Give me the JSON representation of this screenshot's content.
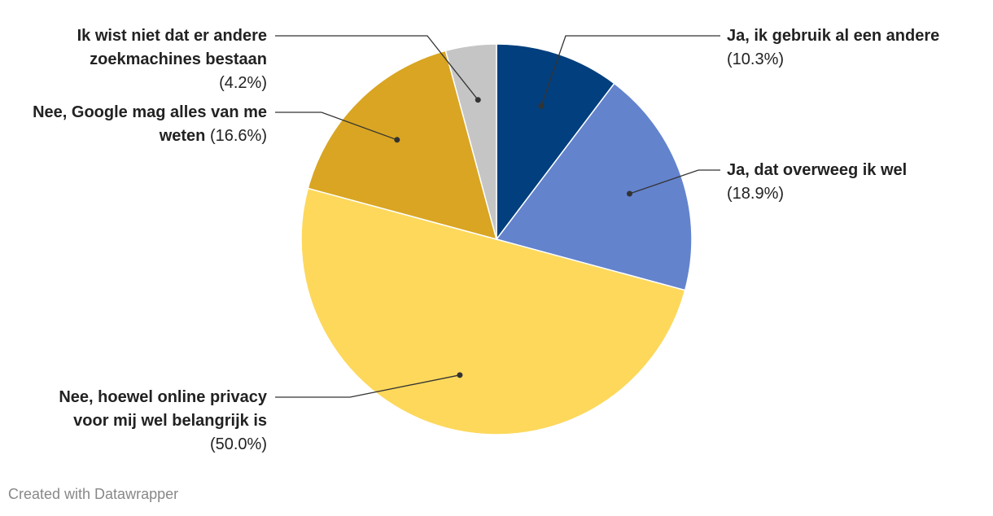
{
  "chart_data": {
    "type": "pie",
    "categories": [
      "Ja, ik gebruik al een andere",
      "Ja, dat overweeg ik wel",
      "Nee, hoewel online privacy voor mij wel belangrijk is",
      "Nee, Google mag alles van me weten",
      "Ik wist niet dat er andere zoekmachines bestaan"
    ],
    "values": [
      10.3,
      18.9,
      50.0,
      16.6,
      4.2
    ],
    "value_labels": [
      "(10.3%)",
      "(18.9%)",
      "(50.0%)",
      "(16.6%)",
      "(4.2%)"
    ],
    "colors": [
      "#023f7e",
      "#6383cd",
      "#fdd85b",
      "#d9a522",
      "#c5c5c5"
    ]
  },
  "credit": "Created with Datawrapper"
}
